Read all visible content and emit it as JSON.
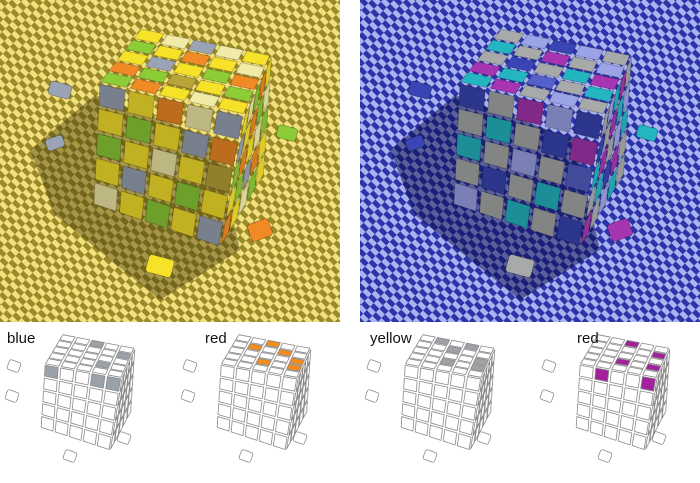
{
  "panels": [
    {
      "id": "panel-yellow",
      "scene": "yellow",
      "floor_light": "#f2e07c",
      "floor_dark": "#9a8a2a",
      "shadow": "rgba(70,60,10,0.45)",
      "face_colors": {
        "B": "#9aa4b6",
        "R": "#f08a24",
        "Y": "#f7e22a",
        "G": "#8ccc36",
        "W": "#f1eba8",
        "D": "#b9a438"
      }
    },
    {
      "id": "panel-blue",
      "scene": "blue",
      "floor_light": "#a9b3ef",
      "floor_dark": "#2d33a8",
      "shadow": "rgba(10,12,70,0.5)",
      "face_colors": {
        "B": "#3a45b5",
        "R": "#a535b0",
        "Y": "#a8aaaa",
        "G": "#23b6c1",
        "W": "#9ca4e8",
        "D": "#5560c8"
      }
    }
  ],
  "faces": {
    "top": [
      "YWBWY",
      "GYRYW",
      "YBYGR",
      "RGDYG",
      "GRYWY"
    ],
    "left": [
      "BYRWB",
      "YGYBR",
      "GYWYD",
      "YBYGY",
      "WYGYB"
    ],
    "right": [
      "YWGRY",
      "BYRGW",
      "GRYWG",
      "YGBRY",
      "RYWGY"
    ]
  },
  "loose_tiles": [
    "B",
    "B",
    "G",
    "R",
    "Y"
  ],
  "diagrams": [
    {
      "label": "blue",
      "highlight": "#9aa1ab",
      "top": [
        [
          0,
          2
        ],
        [
          1,
          4
        ],
        [
          3,
          3
        ]
      ],
      "left": [
        [
          0,
          0
        ],
        [
          0,
          3
        ],
        [
          0,
          4
        ]
      ]
    },
    {
      "label": "red",
      "highlight": "#f28c1f",
      "top": [
        [
          0,
          2
        ],
        [
          1,
          1
        ],
        [
          1,
          3
        ],
        [
          2,
          4
        ],
        [
          3,
          2
        ],
        [
          3,
          4
        ]
      ],
      "left": [],
      "rightface": []
    },
    {
      "label": "yellow",
      "highlight": "#9ea1a6",
      "top": [
        [
          0,
          1
        ],
        [
          0,
          3
        ],
        [
          1,
          2
        ],
        [
          2,
          4
        ],
        [
          3,
          2
        ],
        [
          3,
          4
        ]
      ],
      "left": [],
      "rightface": []
    },
    {
      "label": "red",
      "highlight": "#a3229b",
      "top": [
        [
          0,
          2
        ],
        [
          1,
          4
        ],
        [
          3,
          2
        ],
        [
          3,
          4
        ]
      ],
      "left": [
        [
          0,
          1
        ],
        [
          0,
          4
        ]
      ],
      "rightface": []
    }
  ]
}
